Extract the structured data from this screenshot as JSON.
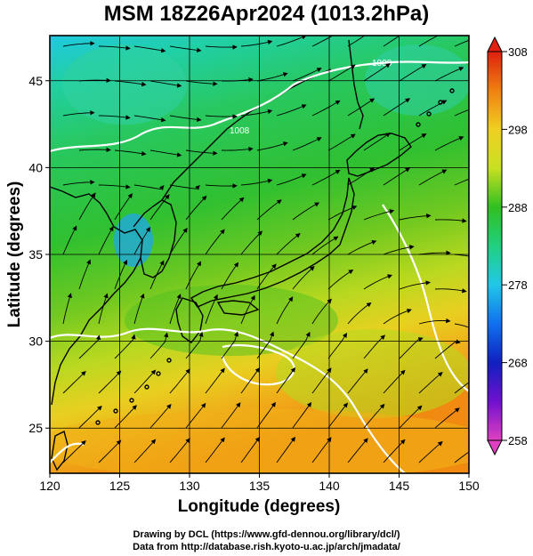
{
  "title": "MSM 18Z26Apr2024 (1013.2hPa)",
  "x_axis": {
    "label": "Longitude (degrees)",
    "ticks": [
      "120",
      "125",
      "130",
      "135",
      "140",
      "145",
      "150"
    ],
    "range": [
      120,
      150
    ]
  },
  "y_axis": {
    "label": "Latitude  (degrees)",
    "ticks": [
      "25",
      "30",
      "35",
      "40",
      "45"
    ],
    "range": [
      22.4,
      47.6
    ]
  },
  "colorbar": {
    "ticks": [
      "258",
      "268",
      "278",
      "288",
      "298",
      "308"
    ],
    "range": [
      258,
      308
    ],
    "colors": [
      "#e040c0",
      "#7010d0",
      "#1020c0",
      "#1070f0",
      "#20c8e8",
      "#20d080",
      "#30c020",
      "#c8e020",
      "#f0d020",
      "#f08010",
      "#e02010"
    ]
  },
  "contour_labels": [
    "1008",
    "1008"
  ],
  "credits": {
    "line1": "Drawing by DCL (https://www.gfd-dennou.org/library/dcl/)",
    "line2": "Data from http://database.rish.kyoto-u.ac.jp/arch/jmadata/"
  },
  "colors": {
    "land_outline": "#000000",
    "isobar": "#ffffff",
    "streamline": "#000000",
    "grid": "#000000"
  }
}
